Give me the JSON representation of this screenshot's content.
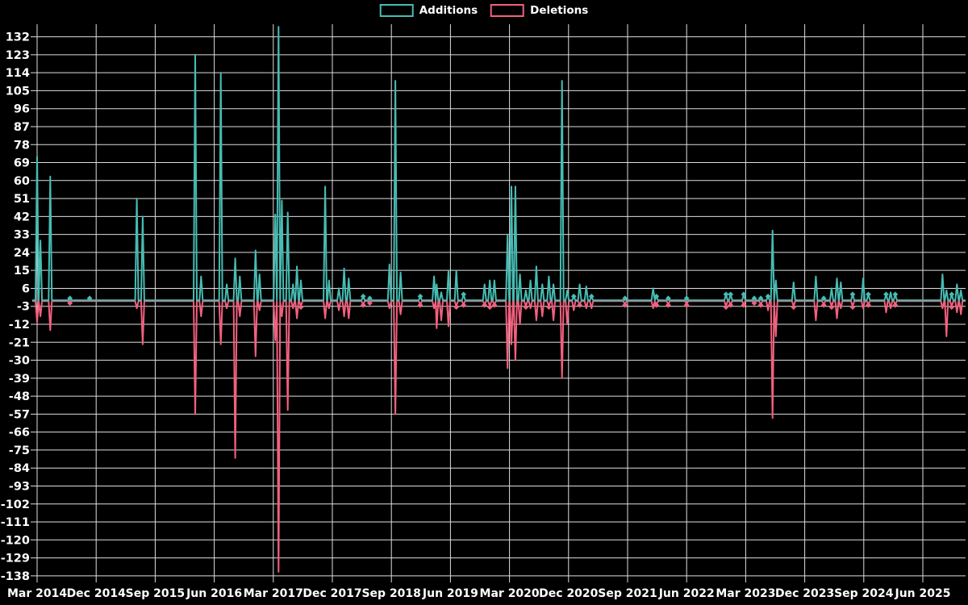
{
  "legend": {
    "items": [
      {
        "label": "Additions",
        "color": "#47bcb3"
      },
      {
        "label": "Deletions",
        "color": "#f2607e"
      }
    ]
  },
  "chart_data": {
    "type": "line",
    "title": "",
    "xlabel": "",
    "ylabel": "",
    "background_color": "#000000",
    "grid": true,
    "grid_color": "#dedede",
    "text_color": "#ffffff",
    "legend_position": "top-center",
    "x_tick_labels": [
      "Mar 2014",
      "Dec 2014",
      "Sep 2015",
      "Jun 2016",
      "Mar 2017",
      "Dec 2017",
      "Sep 2018",
      "Jun 2019",
      "Mar 2020",
      "Dec 2020",
      "Sep 2021",
      "Jun 2022",
      "Mar 2023",
      "Dec 2023",
      "Sep 2024",
      "Jun 2025"
    ],
    "x_tick_interval_months": 9,
    "xlim_months": [
      0,
      141.5
    ],
    "y_ticks": [
      132,
      123,
      114,
      105,
      96,
      87,
      78,
      69,
      60,
      51,
      42,
      33,
      24,
      15,
      6,
      -3,
      -12,
      -21,
      -30,
      -39,
      -48,
      -57,
      -66,
      -75,
      -84,
      -93,
      -102,
      -111,
      -120,
      -129,
      -138
    ],
    "ylim": [
      -138,
      138
    ],
    "series": [
      {
        "name": "Additions",
        "color": "#47bcb3",
        "field": "additions"
      },
      {
        "name": "Deletions",
        "color": "#f2607e",
        "field": "deletions"
      }
    ],
    "points_note": "each point = [months since Mar 2014, additions, deletions]; weeks omitted are zero",
    "points": [
      [
        0,
        72,
        -11
      ],
      [
        0.5,
        30,
        -8
      ],
      [
        2,
        62,
        -15
      ],
      [
        5,
        1,
        -1
      ],
      [
        8,
        1,
        0
      ],
      [
        15.2,
        51,
        -4
      ],
      [
        16.1,
        42,
        -22
      ],
      [
        24.1,
        123,
        -57
      ],
      [
        25,
        12,
        -8
      ],
      [
        28,
        114,
        -22
      ],
      [
        28.9,
        8,
        -4
      ],
      [
        30.2,
        21,
        -79
      ],
      [
        30.9,
        12,
        -8
      ],
      [
        33.3,
        25,
        -28
      ],
      [
        33.9,
        13,
        -5
      ],
      [
        36.3,
        43,
        -20
      ],
      [
        36.8,
        137,
        -136
      ],
      [
        37.3,
        50,
        -8
      ],
      [
        38.2,
        44,
        -55
      ],
      [
        39,
        8,
        -4
      ],
      [
        39.6,
        17,
        -9
      ],
      [
        40.2,
        10,
        -3
      ],
      [
        43.9,
        57,
        -9
      ],
      [
        44.5,
        10,
        -4
      ],
      [
        46,
        6,
        -5
      ],
      [
        46.8,
        16,
        -8
      ],
      [
        47.5,
        11,
        -9
      ],
      [
        49.7,
        2,
        -2
      ],
      [
        50.7,
        1,
        -1
      ],
      [
        53.7,
        18,
        -4
      ],
      [
        54.6,
        110,
        -57
      ],
      [
        55.4,
        14,
        -7
      ],
      [
        58.4,
        2,
        -2
      ],
      [
        60.5,
        12,
        -4
      ],
      [
        60.9,
        8,
        -14
      ],
      [
        61.6,
        4,
        -10
      ],
      [
        62.7,
        15,
        -13
      ],
      [
        63.9,
        15,
        -3
      ],
      [
        65,
        3,
        -2
      ],
      [
        68.2,
        8,
        -2
      ],
      [
        69,
        10,
        -3
      ],
      [
        69.7,
        10,
        -2
      ],
      [
        71.7,
        33,
        -34
      ],
      [
        72.3,
        57,
        -22
      ],
      [
        72.9,
        57,
        -30
      ],
      [
        73.6,
        13,
        -12
      ],
      [
        74.5,
        5,
        -3
      ],
      [
        75.2,
        10,
        -4
      ],
      [
        76.1,
        17,
        -10
      ],
      [
        77,
        8,
        -8
      ],
      [
        78,
        12,
        -3
      ],
      [
        78.7,
        8,
        -10
      ],
      [
        80,
        110,
        -39
      ],
      [
        80.8,
        5,
        -12
      ],
      [
        81.8,
        2,
        -5
      ],
      [
        82.7,
        8,
        -2
      ],
      [
        83.7,
        7,
        -4
      ],
      [
        84.5,
        2,
        -4
      ],
      [
        89.6,
        1,
        -2
      ],
      [
        93.9,
        6,
        -4
      ],
      [
        94.4,
        2,
        -2
      ],
      [
        96.2,
        1,
        -2
      ],
      [
        99,
        1,
        -2
      ],
      [
        105,
        3,
        -3
      ],
      [
        105.7,
        3,
        -2
      ],
      [
        107.7,
        3,
        -2
      ],
      [
        109.3,
        1,
        -1
      ],
      [
        110.3,
        1,
        -2
      ],
      [
        111.4,
        2,
        -5
      ],
      [
        112.1,
        35,
        -59
      ],
      [
        112.6,
        10,
        -18
      ],
      [
        115.3,
        9,
        -3
      ],
      [
        118.7,
        12,
        -10
      ],
      [
        119.9,
        1,
        -2
      ],
      [
        121.1,
        6,
        -3
      ],
      [
        121.9,
        11,
        -9
      ],
      [
        122.5,
        9,
        -4
      ],
      [
        124.3,
        3,
        -3
      ],
      [
        125.9,
        11,
        -4
      ],
      [
        126.7,
        3,
        -2
      ],
      [
        129.4,
        3,
        -6
      ],
      [
        130.1,
        4,
        -4
      ],
      [
        130.8,
        3,
        -2
      ],
      [
        138,
        13,
        -4
      ],
      [
        138.6,
        5,
        -18
      ],
      [
        139.4,
        3,
        -3
      ],
      [
        140.2,
        8,
        -6
      ],
      [
        140.8,
        5,
        -7
      ]
    ]
  }
}
